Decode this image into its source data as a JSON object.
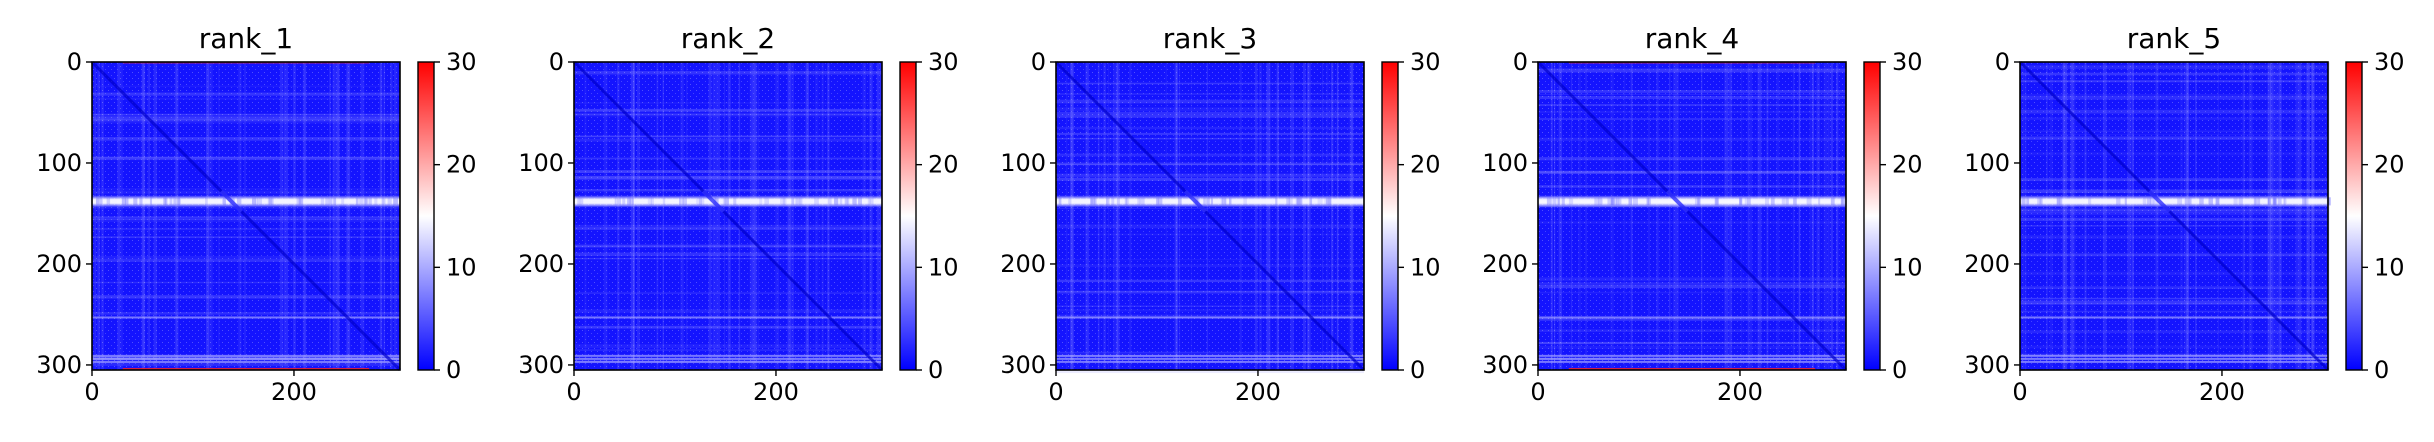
{
  "chart_data": [
    {
      "type": "heatmap",
      "title": "rank_1",
      "xlabel": "",
      "ylabel": "",
      "xlim": [
        0,
        305
      ],
      "ylim": [
        305,
        0
      ],
      "x_ticks": [
        0,
        200
      ],
      "y_ticks": [
        0,
        100,
        200,
        300
      ],
      "colorbar": {
        "range": [
          0,
          30
        ],
        "ticks": [
          0,
          10,
          20,
          30
        ],
        "colors": [
          "#0000ff",
          "#ffffff",
          "#ff0000"
        ]
      },
      "size": 305,
      "bright_band_rows": [
        134,
        142
      ],
      "bottom_edge_red": true
    },
    {
      "type": "heatmap",
      "title": "rank_2",
      "xlabel": "",
      "ylabel": "",
      "xlim": [
        0,
        305
      ],
      "ylim": [
        305,
        0
      ],
      "x_ticks": [
        0,
        200
      ],
      "y_ticks": [
        0,
        100,
        200,
        300
      ],
      "colorbar": {
        "range": [
          0,
          30
        ],
        "ticks": [
          0,
          10,
          20,
          30
        ],
        "colors": [
          "#0000ff",
          "#ffffff",
          "#ff0000"
        ]
      },
      "size": 305,
      "bright_band_rows": [
        134,
        142
      ],
      "bottom_edge_red": false
    },
    {
      "type": "heatmap",
      "title": "rank_3",
      "xlabel": "",
      "ylabel": "",
      "xlim": [
        0,
        305
      ],
      "ylim": [
        305,
        0
      ],
      "x_ticks": [
        0,
        200
      ],
      "y_ticks": [
        0,
        100,
        200,
        300
      ],
      "colorbar": {
        "range": [
          0,
          30
        ],
        "ticks": [
          0,
          10,
          20,
          30
        ],
        "colors": [
          "#0000ff",
          "#ffffff",
          "#ff0000"
        ]
      },
      "size": 305,
      "bright_band_rows": [
        134,
        142
      ],
      "bottom_edge_red": false
    },
    {
      "type": "heatmap",
      "title": "rank_4",
      "xlabel": "",
      "ylabel": "",
      "xlim": [
        0,
        305
      ],
      "ylim": [
        305,
        0
      ],
      "x_ticks": [
        0,
        200
      ],
      "y_ticks": [
        0,
        100,
        200,
        300
      ],
      "colorbar": {
        "range": [
          0,
          30
        ],
        "ticks": [
          0,
          10,
          20,
          30
        ],
        "colors": [
          "#0000ff",
          "#ffffff",
          "#ff0000"
        ]
      },
      "size": 305,
      "bright_band_rows": [
        134,
        142
      ],
      "bottom_edge_red": true
    },
    {
      "type": "heatmap",
      "title": "rank_5",
      "xlabel": "",
      "ylabel": "",
      "xlim": [
        0,
        305
      ],
      "ylim": [
        305,
        0
      ],
      "x_ticks": [
        0,
        200
      ],
      "y_ticks": [
        0,
        100,
        200,
        300
      ],
      "colorbar": {
        "range": [
          0,
          30
        ],
        "ticks": [
          0,
          10,
          20,
          30
        ],
        "colors": [
          "#0000ff",
          "#ffffff",
          "#ff0000"
        ]
      },
      "size": 305,
      "bright_band_rows": [
        134,
        142
      ],
      "bottom_edge_red": false
    }
  ]
}
